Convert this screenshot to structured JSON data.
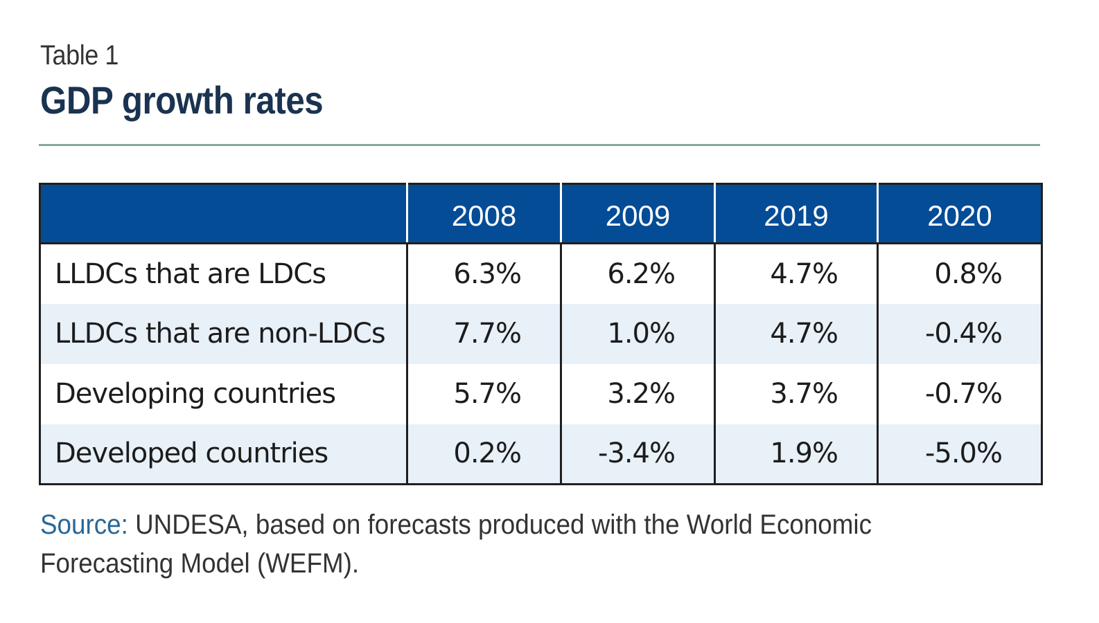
{
  "table_number": "Table 1",
  "title": "GDP growth rates",
  "source": {
    "label": "Source:",
    "text": "UNDESA, based on forecasts produced with the World Economic Forecasting Model (WEFM)."
  },
  "colors": {
    "header_bg": "#054c96",
    "title": "#1a3350",
    "rule": "#8aa89a",
    "stripe": "#e8f0f8",
    "source_label": "#2a6796"
  },
  "chart_data": {
    "type": "table",
    "title": "GDP growth rates",
    "columns": [
      "",
      "2008",
      "2009",
      "2019",
      "2020"
    ],
    "rows": [
      [
        "LLDCs that are LDCs",
        "6.3%",
        "6.2%",
        "4.7%",
        "0.8%"
      ],
      [
        "LLDCs that are non-LDCs",
        "7.7%",
        "1.0%",
        "4.7%",
        "-0.4%"
      ],
      [
        "Developing countries",
        "5.7%",
        "3.2%",
        "3.7%",
        "-0.7%"
      ],
      [
        "Developed countries",
        "0.2%",
        "-3.4%",
        "1.9%",
        "-5.0%"
      ]
    ]
  }
}
